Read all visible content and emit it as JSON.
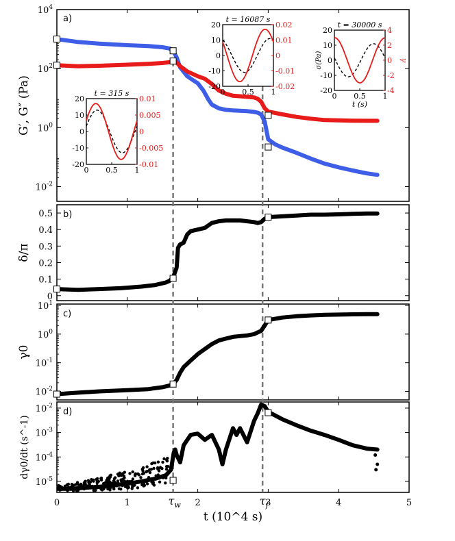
{
  "chart_data": {
    "type": "line",
    "x_axis": {
      "label": "t (10^4 s)",
      "range": [
        0,
        5
      ],
      "ticks": [
        0,
        1,
        2,
        3,
        4,
        5
      ],
      "tick_labels": [
        "0",
        "1",
        "2",
        "3",
        "4",
        "5"
      ],
      "markers": [
        {
          "name": "tau_w",
          "label": "τw",
          "x": 1.65
        },
        {
          "name": "tau_f",
          "label": "τf",
          "x": 2.92
        }
      ]
    },
    "panels": [
      {
        "id": "a",
        "label": "a)",
        "ylabel": "G′, G″ (Pa)",
        "yscale": "log",
        "ylim_exp": [
          -2.5,
          4
        ],
        "ytick_exps": [
          -2,
          0,
          2,
          4
        ],
        "ytick_labels": [
          "10^-2",
          "10^0",
          "10^2",
          "10^4"
        ],
        "series": [
          {
            "name": "G′",
            "color": "#3f5ee8",
            "x": [
              0.0,
              0.3,
              0.6,
              1.0,
              1.3,
              1.5,
              1.6,
              1.65,
              1.7,
              1.75,
              1.85,
              1.95,
              2.0,
              2.08,
              2.15,
              2.2,
              2.3,
              2.4,
              2.5,
              2.6,
              2.7,
              2.8,
              2.85,
              2.9,
              2.95,
              3.0,
              3.1,
              3.2,
              3.4,
              3.6,
              3.8,
              4.0,
              4.2,
              4.4,
              4.55
            ],
            "y": [
              1000,
              800,
              700,
              620,
              580,
              530,
              480,
              400,
              240,
              110,
              55,
              38,
              32,
              18,
              9,
              6,
              4.5,
              4,
              3.8,
              3.7,
              3.6,
              3.4,
              3.2,
              2.8,
              1.6,
              0.4,
              0.27,
              0.21,
              0.14,
              0.09,
              0.06,
              0.045,
              0.035,
              0.028,
              0.025
            ]
          },
          {
            "name": "G″",
            "color": "#e81a1a",
            "x": [
              0.0,
              0.3,
              0.6,
              1.0,
              1.3,
              1.5,
              1.6,
              1.65,
              1.7,
              1.75,
              1.85,
              2.0,
              2.1,
              2.2,
              2.3,
              2.4,
              2.5,
              2.7,
              2.8,
              2.85,
              2.9,
              2.95,
              3.0,
              3.2,
              3.4,
              3.6,
              3.8,
              4.0,
              4.2,
              4.4,
              4.55
            ],
            "y": [
              130,
              120,
              125,
              135,
              145,
              155,
              165,
              180,
              160,
              120,
              80,
              55,
              45,
              30,
              18,
              14,
              12,
              11,
              10.5,
              9.5,
              7.5,
              4.5,
              3.5,
              2.8,
              2.3,
              2.0,
              1.8,
              1.75,
              1.72,
              1.7,
              1.7
            ]
          }
        ],
        "open_markers": [
          {
            "series": "G′",
            "x": 0.0,
            "y": 1000
          },
          {
            "series": "G′",
            "x": 1.65,
            "y": 400
          },
          {
            "series": "G′",
            "x": 3.0,
            "y": 0.22
          },
          {
            "series": "G″",
            "x": 0.0,
            "y": 130
          },
          {
            "series": "G″",
            "x": 1.65,
            "y": 180
          },
          {
            "series": "G″",
            "x": 3.0,
            "y": 2.6
          }
        ],
        "insets": [
          {
            "id": "inset-315",
            "title": "t = 315 s",
            "x_range": [
              0,
              1
            ],
            "x_tick_labels": [
              "0",
              "0.5",
              "1"
            ],
            "left_range": [
              -20,
              20
            ],
            "left_tick_labels": [
              "20",
              "10",
              "0",
              "-10",
              "-20"
            ],
            "right_range": [
              -0.01,
              0.01
            ],
            "right_tick_labels": [
              "0.01",
              "0.005",
              "0",
              "-0.005",
              "-0.01"
            ],
            "stress_amplitude": 13,
            "stress_phase": 0.25,
            "strain_amplitude": 0.0085,
            "strain_phase": 0.4,
            "xlabel": "",
            "left_ylabel": "",
            "right_ylabel": ""
          },
          {
            "id": "inset-16087",
            "title": "t = 16087 s",
            "x_range": [
              0,
              1
            ],
            "x_tick_labels": [
              "0",
              "0.5",
              "1"
            ],
            "left_range": [
              -20,
              20
            ],
            "left_tick_labels": [
              "20",
              "10",
              "0",
              "-10",
              "-20"
            ],
            "right_range": [
              -0.02,
              0.02
            ],
            "right_tick_labels": [
              "0.02",
              "0.01",
              "0",
              "-0.01",
              "-0.02"
            ],
            "stress_amplitude": 11,
            "stress_phase": 2.0,
            "strain_amplitude": 0.017,
            "strain_phase": 2.6,
            "xlabel": "",
            "left_ylabel": "",
            "right_ylabel": ""
          },
          {
            "id": "inset-30000",
            "title": "t = 30000 s",
            "x_range": [
              0,
              1
            ],
            "x_tick_labels": [
              "0",
              "0.5",
              "1"
            ],
            "left_range": [
              -20,
              20
            ],
            "left_tick_labels": [
              "20",
              "10",
              "0",
              "-10",
              "-20"
            ],
            "right_range": [
              -4,
              4
            ],
            "right_tick_labels": [
              "4",
              "2",
              "0",
              "-2",
              "-4"
            ],
            "stress_amplitude": 11,
            "stress_phase": 3.0,
            "strain_amplitude": 3.0,
            "strain_phase": 1.55,
            "xlabel": "t (s)",
            "left_ylabel": "σ(Pa)",
            "right_ylabel": "γ"
          }
        ]
      },
      {
        "id": "b",
        "label": "b)",
        "ylabel": "δ/π",
        "yscale": "linear",
        "ylim": [
          -0.03,
          0.55
        ],
        "yticks": [
          0,
          0.1,
          0.2,
          0.3,
          0.4,
          0.5
        ],
        "ytick_labels": [
          "0",
          "0.1",
          "0.2",
          "0.3",
          "0.4",
          "0.5"
        ],
        "series": [
          {
            "name": "δ/π",
            "color": "#000000",
            "x": [
              0.0,
              0.3,
              0.6,
              0.9,
              1.2,
              1.4,
              1.55,
              1.6,
              1.65,
              1.7,
              1.72,
              1.75,
              1.8,
              1.85,
              1.9,
              2.0,
              2.1,
              2.2,
              2.3,
              2.4,
              2.5,
              2.6,
              2.7,
              2.8,
              2.85,
              2.9,
              2.95,
              3.0,
              3.2,
              3.4,
              3.6,
              3.8,
              4.0,
              4.2,
              4.4,
              4.55
            ],
            "y": [
              0.04,
              0.035,
              0.04,
              0.045,
              0.055,
              0.065,
              0.08,
              0.09,
              0.11,
              0.17,
              0.29,
              0.31,
              0.32,
              0.37,
              0.39,
              0.4,
              0.41,
              0.44,
              0.45,
              0.455,
              0.455,
              0.455,
              0.45,
              0.445,
              0.44,
              0.445,
              0.465,
              0.475,
              0.48,
              0.485,
              0.49,
              0.49,
              0.492,
              0.495,
              0.497,
              0.497
            ]
          }
        ],
        "open_markers": [
          {
            "x": 0.0,
            "y": 0.04
          },
          {
            "x": 1.65,
            "y": 0.105
          },
          {
            "x": 3.0,
            "y": 0.475
          }
        ]
      },
      {
        "id": "c",
        "label": "c)",
        "ylabel": "γ0",
        "yscale": "log",
        "ylim_exp": [
          -2.3,
          1.05
        ],
        "ytick_exps": [
          -2,
          -1,
          0,
          1
        ],
        "ytick_labels": [
          "10^-2",
          "10^-1",
          "10^0",
          "10^1"
        ],
        "series": [
          {
            "name": "γ0",
            "color": "#000000",
            "x": [
              0.0,
              0.3,
              0.6,
              1.0,
              1.3,
              1.5,
              1.6,
              1.65,
              1.7,
              1.75,
              1.8,
              1.9,
              2.0,
              2.1,
              2.2,
              2.3,
              2.4,
              2.5,
              2.6,
              2.7,
              2.8,
              2.9,
              2.95,
              3.0,
              3.2,
              3.4,
              3.6,
              3.8,
              4.0,
              4.2,
              4.4,
              4.55
            ],
            "y": [
              0.008,
              0.009,
              0.01,
              0.011,
              0.012,
              0.014,
              0.016,
              0.018,
              0.025,
              0.045,
              0.07,
              0.12,
              0.2,
              0.3,
              0.45,
              0.6,
              0.7,
              0.8,
              0.85,
              0.9,
              1.0,
              1.3,
              2.0,
              3.1,
              3.8,
              4.2,
              4.5,
              4.7,
              4.8,
              4.9,
              5.0,
              5.0
            ]
          }
        ],
        "open_markers": [
          {
            "x": 0.0,
            "y": 0.008
          },
          {
            "x": 1.65,
            "y": 0.018
          },
          {
            "x": 3.0,
            "y": 3.1
          }
        ]
      },
      {
        "id": "d",
        "label": "d)",
        "ylabel": "dγ0/dt (s^-1)",
        "yscale": "log",
        "ylim_exp": [
          -5.45,
          -1.75
        ],
        "ytick_exps": [
          -5,
          -4,
          -3,
          -2
        ],
        "ytick_labels": [
          "10^-5",
          "10^-4",
          "10^-3",
          "10^-2"
        ],
        "series": [
          {
            "name": "dγ0/dt",
            "color": "#000000",
            "x": [
              0.0,
              0.2,
              0.4,
              0.6,
              0.8,
              1.0,
              1.2,
              1.4,
              1.55,
              1.62,
              1.66,
              1.68,
              1.7,
              1.75,
              1.8,
              1.9,
              2.0,
              2.1,
              2.2,
              2.3,
              2.35,
              2.4,
              2.5,
              2.55,
              2.6,
              2.7,
              2.8,
              2.85,
              2.9,
              2.95,
              3.0,
              3.2,
              3.4,
              3.6,
              3.8,
              4.0,
              4.2,
              4.4,
              4.55
            ],
            "y": [
              5e-06,
              5e-06,
              5.5e-06,
              6e-06,
              7e-06,
              8e-06,
              1e-05,
              1.3e-05,
              1.8e-05,
              3e-05,
              0.00015,
              0.0002,
              0.00012,
              6e-05,
              0.0003,
              0.0008,
              0.0009,
              0.0005,
              0.0008,
              0.0002,
              5e-05,
              0.0002,
              0.0015,
              0.0008,
              0.0015,
              0.0004,
              0.003,
              0.006,
              0.014,
              0.012,
              0.007,
              0.0035,
              0.002,
              0.0012,
              0.0008,
              0.0005,
              0.0003,
              0.00022,
              0.0002
            ]
          }
        ],
        "open_markers": [
          {
            "x": 1.65,
            "y": 1.1e-05
          },
          {
            "x": 3.0,
            "y": 0.0065
          }
        ]
      }
    ]
  }
}
